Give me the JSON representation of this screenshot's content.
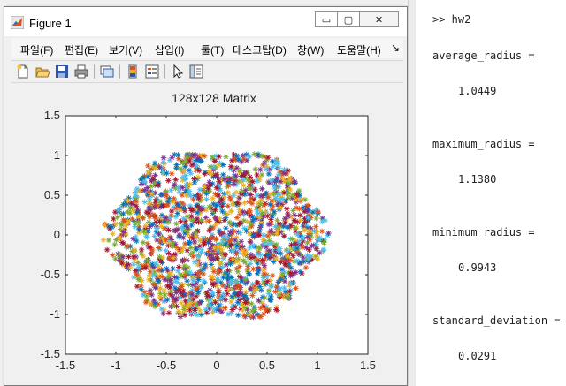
{
  "window": {
    "title": "Figure 1",
    "min_glyph": "▭",
    "max_glyph": "▢",
    "close_glyph": "✕"
  },
  "menu": {
    "items": [
      "파일(F)",
      "편집(E)",
      "보기(V)",
      "삽입(I)",
      "툴(T)",
      "데스크탑(D)",
      "창(W)",
      "도움말(H)"
    ],
    "overflow": "↘"
  },
  "toolbar": {
    "icons": [
      "new-figure-icon",
      "open-file-icon",
      "save-icon",
      "print-icon",
      "link-plot-icon",
      "colorbar-icon",
      "legend-icon",
      "edit-plot-arrow-icon",
      "property-inspector-icon"
    ]
  },
  "console": {
    "command": ">> hw2",
    "outputs": [
      {
        "name": "average_radius =",
        "value": "1.0449"
      },
      {
        "name": "maximum_radius =",
        "value": "1.1380"
      },
      {
        "name": "minimum_radius =",
        "value": "0.9943"
      },
      {
        "name": "standard_deviation =",
        "value": "0.0291"
      }
    ]
  },
  "chart_data": {
    "type": "scatter",
    "title": "128x128 Matrix",
    "marker": "*",
    "xlim": [
      -1.5,
      1.5
    ],
    "ylim": [
      -1.5,
      1.5
    ],
    "xticks": [
      "-1.5",
      "-1",
      "-0.5",
      "0",
      "0.5",
      "1",
      "1.5"
    ],
    "yticks": [
      "1.5",
      "1",
      "0.5",
      "0",
      "-0.5",
      "-1",
      "-1.5"
    ],
    "xtick_values": [
      -1.5,
      -1,
      -0.5,
      0,
      0.5,
      1,
      1.5
    ],
    "ytick_values": [
      1.5,
      1,
      0.5,
      0,
      -0.5,
      -1,
      -1.5
    ],
    "radius": {
      "mean": 1.0449,
      "max": 1.138,
      "min": 0.9943
    },
    "colors": [
      "#0072bd",
      "#d95319",
      "#edb120",
      "#7e2f8e",
      "#77ac30",
      "#4dbeee",
      "#a2142f"
    ],
    "grid": false
  }
}
